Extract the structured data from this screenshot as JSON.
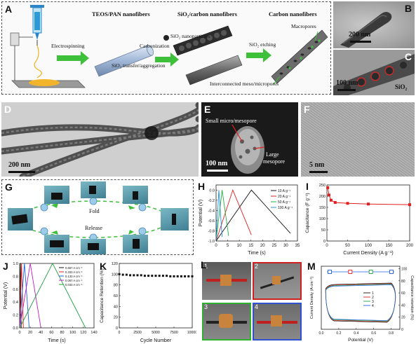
{
  "panel_labels": {
    "a": "A",
    "b": "B",
    "c": "C",
    "d": "D",
    "e": "E",
    "f": "F",
    "g": "G",
    "h": "H",
    "i": "I",
    "j": "J",
    "k": "K",
    "l": "L",
    "m": "M"
  },
  "schematic": {
    "titles": {
      "teos": "TEOS/PAN nanofibers",
      "sio2carbon": "SiO₂/carbon nanofibers",
      "carbon": "Carbon nanofibers"
    },
    "steps": {
      "electrospinning": "Electrospinning",
      "carbonization": "Carbonization",
      "transfer": "SiO₂ transfer/aggregation",
      "etching": "SiO₂ etching",
      "nanoparticles": "SiO₂ nanoparticles",
      "macropores": "Macropores",
      "interconnected": "Interconnected meso/micropores"
    }
  },
  "micrographs": {
    "b_scale": "200 nm",
    "c_scale": "100 nm",
    "c_label": "SiO₂",
    "d_scale": "200 nm",
    "e_scale": "100 nm",
    "e_small": "Small micro/mesopore",
    "e_large_1": "Large",
    "e_large_2": "mesopore",
    "f_scale": "5 nm"
  },
  "fold_demo": {
    "fold": "Fold",
    "release": "Release"
  },
  "chart_h": {
    "ylabel": "Potential (V)",
    "xlabel": "Time (s)",
    "xticks": [
      "0",
      "5",
      "10",
      "15",
      "20",
      "25",
      "30",
      "35"
    ],
    "yticks": [
      "0.0",
      "-0.2",
      "-0.4",
      "-0.6",
      "-0.8",
      "-1.0"
    ],
    "legend": [
      "10 A g⁻¹",
      "20 A g⁻¹",
      "50 A g⁻¹",
      "100 A g⁻¹"
    ],
    "colors": [
      "#111111",
      "#e02020",
      "#20b040",
      "#2090e0"
    ]
  },
  "chart_i": {
    "ylabel": "Capacitance (F g⁻¹)",
    "xlabel": "Current Density (A g⁻¹)",
    "xticks": [
      "0",
      "50",
      "100",
      "150",
      "200"
    ],
    "yticks": [
      "0",
      "50",
      "100",
      "150",
      "200",
      "250"
    ]
  },
  "chart_j": {
    "ylabel": "Potential (V)",
    "xlabel": "Time (s)",
    "xticks": [
      "0",
      "20",
      "40",
      "60",
      "80",
      "100",
      "120",
      "140"
    ],
    "yticks": [
      "0.0",
      "0.2",
      "0.4",
      "0.6",
      "0.8",
      "1.0"
    ],
    "legend": [
      "0.667 A cm⁻³",
      "0.333 A cm⁻³",
      "0.133 A cm⁻³",
      "0.067 A cm⁻³",
      "0.033 A cm⁻³"
    ],
    "colors": [
      "#111111",
      "#e02020",
      "#2060e0",
      "#c020c0",
      "#20a040"
    ]
  },
  "chart_k": {
    "ylabel": "Capacitance Retention (%)",
    "xlabel": "Cycle Number",
    "xticks": [
      "0",
      "2500",
      "5000",
      "7500",
      "10000"
    ],
    "yticks": [
      "0",
      "20",
      "40",
      "60",
      "80",
      "100",
      "120"
    ]
  },
  "photos_l": [
    "1",
    "2",
    "3",
    "4"
  ],
  "chart_m": {
    "ylabel": "Current Density (A cm⁻³)",
    "ylabel2": "Capacitance retention (%)",
    "xlabel": "Potential (V)",
    "xticks": [
      "0.0",
      "0.2",
      "0.4",
      "0.6",
      "0.8"
    ],
    "yticks_right": [
      "0",
      "20",
      "40",
      "60",
      "80",
      "100"
    ],
    "legend": [
      "1",
      "2",
      "3",
      "4"
    ]
  },
  "chart_data": [
    {
      "type": "line",
      "id": "H",
      "xlabel": "Time (s)",
      "ylabel": "Potential (V)",
      "xlim": [
        0,
        35
      ],
      "ylim": [
        -1.0,
        0.1
      ],
      "series": [
        {
          "name": "10 A g⁻¹",
          "x": [
            0,
            15.2,
            32
          ],
          "y": [
            -1.0,
            0.0,
            -0.85
          ]
        },
        {
          "name": "20 A g⁻¹",
          "x": [
            0,
            7.2,
            15.2
          ],
          "y": [
            -1.0,
            0.0,
            -0.88
          ]
        },
        {
          "name": "50 A g⁻¹",
          "x": [
            0,
            2.6,
            5.4
          ],
          "y": [
            -1.0,
            0.0,
            -0.9
          ]
        },
        {
          "name": "100 A g⁻¹",
          "x": [
            0,
            1.2,
            2.6
          ],
          "y": [
            -1.0,
            0.0,
            -0.92
          ]
        }
      ]
    },
    {
      "type": "scatter",
      "id": "I",
      "xlabel": "Current Density (A g⁻¹)",
      "ylabel": "Capacitance (F g⁻¹)",
      "xlim": [
        0,
        200
      ],
      "ylim": [
        0,
        250
      ],
      "x": [
        2,
        5,
        10,
        20,
        50,
        100,
        200
      ],
      "y": [
        238,
        205,
        182,
        172,
        168,
        165,
        162
      ]
    },
    {
      "type": "line",
      "id": "J",
      "xlabel": "Time (s)",
      "ylabel": "Potential (V)",
      "xlim": [
        0,
        140
      ],
      "ylim": [
        0,
        1.0
      ],
      "series": [
        {
          "name": "0.667 A cm⁻³",
          "x": [
            0,
            1.5,
            3
          ],
          "y": [
            0,
            1.0,
            0
          ]
        },
        {
          "name": "0.333 A cm⁻³",
          "x": [
            0,
            3.5,
            7
          ],
          "y": [
            0,
            1.0,
            0
          ]
        },
        {
          "name": "0.133 A cm⁻³",
          "x": [
            0,
            9,
            18
          ],
          "y": [
            0,
            1.0,
            0
          ]
        },
        {
          "name": "0.067 A cm⁻³",
          "x": [
            0,
            20,
            40
          ],
          "y": [
            0,
            1.0,
            0
          ]
        },
        {
          "name": "0.033 A cm⁻³",
          "x": [
            0,
            62,
            124
          ],
          "y": [
            0,
            1.0,
            0
          ]
        }
      ]
    },
    {
      "type": "scatter",
      "id": "K",
      "xlabel": "Cycle Number",
      "ylabel": "Capacitance Retention (%)",
      "xlim": [
        0,
        10000
      ],
      "ylim": [
        0,
        120
      ],
      "x": [
        0,
        500,
        1000,
        1500,
        2000,
        2500,
        3000,
        3500,
        4000,
        4500,
        5000,
        5500,
        6000,
        6500,
        7000,
        7500,
        8000,
        8500,
        9000,
        9500,
        10000
      ],
      "y": [
        100,
        99,
        99,
        98,
        98,
        98,
        98,
        97,
        97,
        97,
        97,
        97,
        97,
        97,
        96,
        96,
        96,
        96,
        96,
        96,
        96
      ]
    },
    {
      "type": "line",
      "id": "M",
      "xlabel": "Potential (V)",
      "ylabel": "Current Density (A cm⁻³)",
      "xlim": [
        0,
        0.9
      ],
      "series": [
        {
          "name": "1",
          "x": [
            0.05,
            0.85
          ],
          "y": [
            0.5,
            0.5
          ]
        },
        {
          "name": "2",
          "x": [
            0.05,
            0.85
          ],
          "y": [
            0.48,
            0.48
          ]
        },
        {
          "name": "3",
          "x": [
            0.05,
            0.85
          ],
          "y": [
            0.5,
            0.5
          ]
        },
        {
          "name": "4",
          "x": [
            0.05,
            0.85
          ],
          "y": [
            0.49,
            0.49
          ]
        }
      ],
      "retention": {
        "x": [
          "1",
          "2",
          "3",
          "4"
        ],
        "y": [
          100,
          100,
          100,
          100
        ]
      }
    }
  ]
}
